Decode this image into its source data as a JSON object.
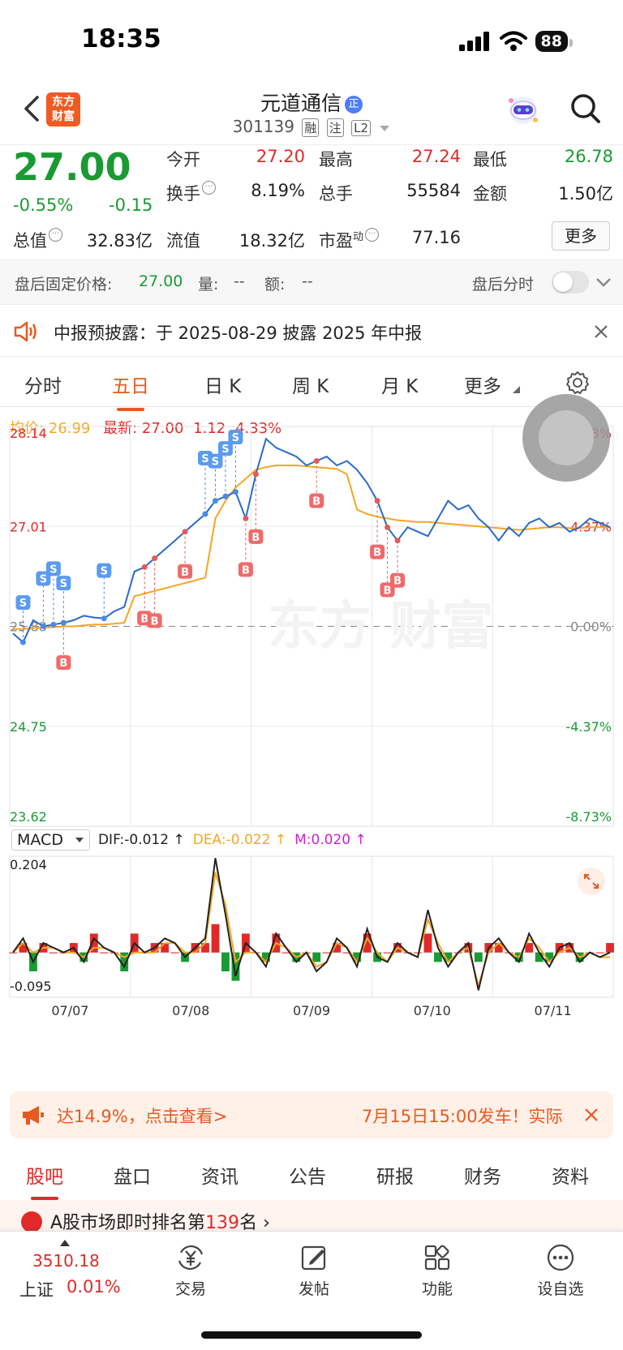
{
  "status": {
    "time": "18:35",
    "battery": "88"
  },
  "header": {
    "logo": "东方\n财富",
    "logo_line1": "东方",
    "logo_line2": "财富",
    "stock_name": "元道通信",
    "badge": "正",
    "code": "301139",
    "tags": [
      "融",
      "注",
      "L2"
    ]
  },
  "quote": {
    "price": "27.00",
    "change_pct": "-0.55%",
    "change_abs": "-0.15",
    "fields": {
      "open_label": "今开",
      "open": "27.20",
      "high_label": "最高",
      "high": "27.24",
      "low_label": "最低",
      "low": "26.78",
      "turnover_label": "换手",
      "turnover": "8.19%",
      "volume_label": "总手",
      "volume": "55584",
      "amount_label": "金额",
      "amount": "1.50亿",
      "mktcap_label": "总值",
      "mktcap": "32.83亿",
      "float_label": "流值",
      "float": "18.32亿",
      "pe_label": "市盈",
      "pe_sup": "动",
      "pe": "77.16"
    },
    "more_label": "更多"
  },
  "after_hours": {
    "label": "盘后固定价格:",
    "price": "27.00",
    "vol_label": "量:",
    "vol": "--",
    "amt_label": "额:",
    "amt": "--",
    "timeshare_label": "盘后分时"
  },
  "notice": {
    "text": "中报预披露：于 2025-08-29 披露 2025 年中报"
  },
  "tabs": [
    "分时",
    "五日",
    "日 K",
    "周 K",
    "月 K",
    "更多"
  ],
  "active_tab": "五日",
  "legend": {
    "avg_label": "均价:",
    "avg": "26.99",
    "latest_label": "最新:",
    "latest": "27.00",
    "chg": "1.12",
    "pct": "4.33%"
  },
  "chart_data": {
    "type": "line",
    "price_axis": {
      "left_ticks": [
        "28.14",
        "27.01",
        "25.88",
        "24.75",
        "23.62"
      ],
      "right_ticks": [
        "8.73%",
        "4.37%",
        "0.00%",
        "-4.37%",
        "-8.73%"
      ],
      "ylim": [
        23.62,
        28.14
      ],
      "prev_close": 25.88
    },
    "x_labels": [
      "07/07",
      "07/08",
      "07/09",
      "07/10",
      "07/11"
    ],
    "series": [
      {
        "values": [
          25.8,
          25.7,
          25.95,
          25.88,
          25.9,
          25.92,
          25.95,
          26.0,
          25.98,
          25.97,
          26.05,
          26.1,
          26.5,
          26.55,
          26.65,
          26.75,
          26.85,
          26.95,
          27.05,
          27.15,
          27.3,
          27.35,
          27.4,
          27.1,
          27.6,
          28.0,
          27.9,
          27.85,
          27.8,
          27.7,
          27.75,
          27.8,
          27.7,
          27.75,
          27.65,
          27.5,
          27.3,
          27.0,
          26.85,
          27.0,
          26.95,
          26.9,
          27.1,
          27.3,
          27.2,
          27.25,
          27.1,
          27.0,
          26.85,
          27.0,
          26.9,
          27.05,
          27.1,
          27.0,
          27.05,
          26.95,
          27.0,
          27.1,
          27.05,
          27.0
        ]
      },
      {
        "values": [
          25.85,
          25.85,
          25.86,
          25.87,
          25.87,
          25.88,
          25.88,
          25.89,
          25.9,
          25.9,
          25.91,
          25.92,
          26.22,
          26.25,
          26.28,
          26.31,
          26.34,
          26.37,
          26.4,
          26.43,
          27.1,
          27.3,
          27.45,
          27.55,
          27.65,
          27.68,
          27.7,
          27.7,
          27.7,
          27.69,
          27.68,
          27.67,
          27.66,
          27.6,
          27.2,
          27.15,
          27.12,
          27.1,
          27.08,
          27.07,
          27.06,
          27.06,
          27.05,
          27.04,
          27.03,
          27.02,
          27.01,
          27.0,
          26.99,
          26.98,
          26.97,
          26.98,
          26.99,
          27.0,
          27.0,
          26.99,
          26.99,
          27.0,
          27.0,
          27.0
        ]
      }
    ],
    "macd": {
      "selector_label": "MACD",
      "dif_label": "DIF:-0.012 ↑",
      "dea_label": "DEA:-0.022 ↑",
      "m_label": "M:0.020 ↑",
      "ylim": [
        -0.095,
        0.204
      ],
      "top_tick": "0.204",
      "bottom_tick": "-0.095",
      "dif": [
        0.0,
        0.03,
        -0.02,
        0.02,
        0.01,
        0.0,
        0.01,
        -0.02,
        0.03,
        0.01,
        0.0,
        -0.03,
        0.02,
        0.0,
        0.01,
        0.03,
        0.02,
        -0.01,
        0.01,
        0.03,
        0.2,
        0.08,
        -0.05,
        0.02,
        0.0,
        -0.03,
        0.04,
        0.01,
        -0.02,
        0.0,
        -0.04,
        -0.02,
        0.03,
        0.01,
        -0.03,
        0.05,
        -0.01,
        -0.02,
        0.02,
        0.0,
        -0.01,
        0.09,
        0.01,
        -0.03,
        0.0,
        0.02,
        -0.08,
        0.01,
        0.03,
        0.0,
        -0.02,
        0.04,
        0.0,
        -0.03,
        0.01,
        0.02,
        -0.02,
        0.0,
        -0.01,
        0.0
      ],
      "dea": [
        0.0,
        0.02,
        0.0,
        0.01,
        0.01,
        0.0,
        0.0,
        -0.01,
        0.01,
        0.01,
        0.0,
        -0.01,
        0.0,
        0.0,
        0.0,
        0.02,
        0.02,
        0.0,
        0.0,
        0.02,
        0.17,
        0.1,
        -0.02,
        0.0,
        0.0,
        -0.02,
        0.02,
        0.01,
        -0.01,
        0.0,
        -0.03,
        -0.02,
        0.02,
        0.01,
        -0.02,
        0.03,
        0.0,
        -0.02,
        0.01,
        0.0,
        -0.01,
        0.07,
        0.02,
        -0.02,
        0.0,
        0.01,
        -0.07,
        0.0,
        0.02,
        0.0,
        -0.01,
        0.03,
        0.01,
        -0.02,
        0.0,
        0.01,
        -0.01,
        0.0,
        -0.01,
        -0.01
      ],
      "m": [
        0.0,
        0.02,
        -0.04,
        0.02,
        0.0,
        0.0,
        0.02,
        -0.02,
        0.04,
        0.0,
        0.0,
        -0.04,
        0.04,
        0.0,
        0.02,
        0.02,
        0.0,
        -0.02,
        0.02,
        0.02,
        0.06,
        -0.04,
        -0.06,
        0.04,
        0.0,
        -0.02,
        0.04,
        0.0,
        -0.02,
        0.0,
        -0.02,
        0.0,
        0.02,
        0.0,
        -0.02,
        0.04,
        -0.02,
        0.0,
        0.02,
        0.0,
        0.0,
        0.04,
        -0.02,
        -0.02,
        0.0,
        0.02,
        -0.02,
        0.02,
        0.02,
        0.0,
        -0.02,
        0.02,
        -0.02,
        -0.02,
        0.02,
        0.02,
        -0.02,
        0.0,
        0.0,
        0.02
      ]
    },
    "trade_markers": {
      "buy": [
        5,
        13,
        14,
        17,
        23,
        24,
        30,
        36,
        37,
        38
      ],
      "sell": [
        1,
        3,
        4,
        5,
        9,
        19,
        20,
        21,
        22
      ]
    }
  },
  "promo": {
    "text_left": "达14.9%，点击查看>",
    "text_right": "7月15日15:00发车！实际"
  },
  "sub_tabs": [
    "股吧",
    "盘口",
    "资讯",
    "公告",
    "研报",
    "财务",
    "资料"
  ],
  "active_sub_tab": "股吧",
  "rank_banner": {
    "prefix": "A股市场即时排名第",
    "rank": "139",
    "suffix": "名"
  },
  "bottom_bar": {
    "index_value": "3510.18",
    "index_name": "上证",
    "index_chg": "0.01%",
    "items": [
      "交易",
      "发帖",
      "功能",
      "设自选"
    ]
  },
  "colors": {
    "up": "#e02a2a",
    "down": "#1a9a33",
    "accent": "#e65a1f",
    "price_line": "#2a6ac8",
    "avg_line": "#f5a623"
  }
}
